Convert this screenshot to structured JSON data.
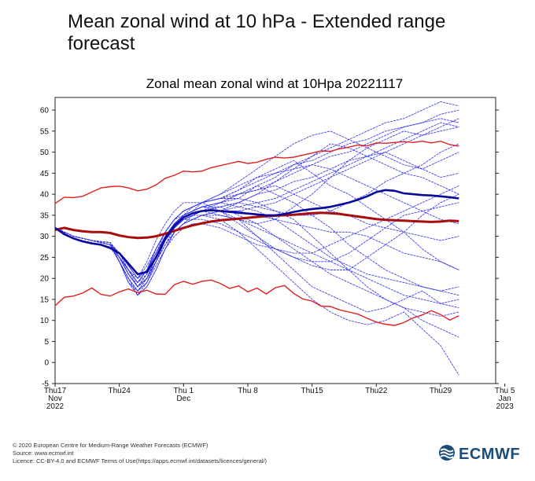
{
  "page": {
    "title": "Mean zonal wind at 10 hPa - Extended range forecast"
  },
  "chart_data": {
    "type": "line",
    "title": "Zonal mean zonal wind at 10Hpa 20221117",
    "xlabel": "",
    "ylabel": "",
    "x_unit": "days since 2022-11-17",
    "xlim": [
      0,
      48
    ],
    "ylim": [
      -5,
      63
    ],
    "yticks": [
      -5,
      0,
      5,
      10,
      15,
      20,
      25,
      30,
      35,
      40,
      45,
      50,
      55,
      60
    ],
    "xticks": [
      {
        "x": 0,
        "lines": [
          "Thu17",
          "Nov",
          "2022"
        ]
      },
      {
        "x": 7,
        "lines": [
          "Thu24"
        ]
      },
      {
        "x": 14,
        "lines": [
          "Thu 1",
          "Dec"
        ]
      },
      {
        "x": 21,
        "lines": [
          "Thu 8"
        ]
      },
      {
        "x": 28,
        "lines": [
          "Thu15"
        ]
      },
      {
        "x": 35,
        "lines": [
          "Thu22"
        ]
      },
      {
        "x": 42,
        "lines": [
          "Thu29"
        ]
      },
      {
        "x": 49,
        "lines": [
          "Thu 5",
          "Jan",
          "2023"
        ]
      }
    ],
    "grid": false,
    "legend": "none",
    "colors": {
      "ensemble": "#2a2aee",
      "ensemble_mean": "#0a0a9a",
      "climatology_mean": "#a80d0d",
      "climatology_bounds": "#e02020"
    },
    "climatology": {
      "x": [
        0,
        1,
        2,
        3,
        4,
        5,
        6,
        7,
        8,
        9,
        10,
        11,
        12,
        13,
        14,
        15,
        16,
        17,
        18,
        19,
        20,
        21,
        22,
        23,
        24,
        25,
        26,
        27,
        28,
        29,
        30,
        31,
        32,
        33,
        34,
        35,
        36,
        37,
        38,
        39,
        40,
        41,
        42,
        43,
        44
      ],
      "mean": [
        31.5,
        32,
        31.5,
        31.2,
        31,
        31,
        30.8,
        30.2,
        29.8,
        29.6,
        29.7,
        30,
        30.6,
        31.3,
        32,
        32.6,
        33.1,
        33.5,
        33.8,
        34,
        34.2,
        34.4,
        34.6,
        34.8,
        34.9,
        35,
        35.1,
        35.3,
        35.5,
        35.6,
        35.5,
        35.3,
        35,
        34.7,
        34.4,
        34.1,
        33.9,
        33.8,
        33.7,
        33.6,
        33.5,
        33.4,
        33.5,
        33.7,
        33.6
      ],
      "upper": [
        37.8,
        39.3,
        39.2,
        39.5,
        40.5,
        41.5,
        41.8,
        41.9,
        41.5,
        40.8,
        41.2,
        42.2,
        43.8,
        44.5,
        45.5,
        45.3,
        45.5,
        46.3,
        46.8,
        47.3,
        47.8,
        47.3,
        47.6,
        48.3,
        48.8,
        48.6,
        48.8,
        49.3,
        49.8,
        50.3,
        50.2,
        50.8,
        51.2,
        51.7,
        51.5,
        52.2,
        52.1,
        52.3,
        52.5,
        52.3,
        52.6,
        52.2,
        52.6,
        51.8,
        51.4
      ],
      "lower": [
        13.5,
        15.5,
        15.8,
        16.5,
        17.7,
        16.2,
        15.8,
        16.8,
        17.5,
        16.6,
        17.2,
        16.3,
        16.2,
        18.5,
        19.3,
        18.6,
        19.3,
        19.6,
        18.8,
        17.6,
        18.2,
        16.8,
        17.7,
        16.3,
        17.8,
        18.3,
        16.4,
        15.1,
        14.6,
        13.4,
        13.3,
        12.5,
        12,
        11.5,
        10.5,
        9.6,
        9.1,
        8.8,
        9.5,
        10.6,
        11.3,
        12.3,
        11.4,
        10.1,
        11.1
      ]
    },
    "ensemble_mean": {
      "x": [
        0,
        1,
        2,
        3,
        4,
        5,
        6,
        7,
        8,
        9,
        10,
        11,
        12,
        13,
        14,
        15,
        16,
        17,
        18,
        19,
        20,
        21,
        22,
        23,
        24,
        25,
        26,
        27,
        28,
        29,
        30,
        31,
        32,
        33,
        34,
        35,
        36,
        37,
        38,
        39,
        40,
        41,
        42,
        43,
        44
      ],
      "values": [
        32,
        30.5,
        29.5,
        28.8,
        28.3,
        28,
        27.2,
        26,
        23.5,
        21,
        21.5,
        25,
        29.5,
        32.5,
        34.5,
        35.5,
        36,
        36.2,
        36,
        35.8,
        35.6,
        35.4,
        35.2,
        35,
        35,
        35.3,
        35.8,
        36.2,
        36.5,
        36.7,
        37,
        37.5,
        38,
        38.7,
        39.5,
        40.5,
        41,
        40.8,
        40.2,
        40,
        39.8,
        39.7,
        39.5,
        39.3,
        39
      ]
    },
    "members_x": [
      0,
      2,
      4,
      6,
      7,
      8,
      9,
      10,
      11,
      12,
      13,
      14,
      15,
      16,
      18,
      20,
      22,
      24,
      26,
      28,
      30,
      32,
      34,
      36,
      38,
      40,
      42,
      44
    ],
    "members": [
      [
        32,
        30,
        29,
        28.5,
        25,
        21,
        18,
        20,
        25,
        30,
        33,
        35,
        36,
        37,
        38,
        39,
        42,
        44,
        47,
        49,
        51,
        53,
        55,
        57,
        58,
        60,
        62,
        61
      ],
      [
        32,
        30,
        29,
        28,
        26,
        22,
        19,
        22,
        27,
        31,
        34,
        36,
        37,
        38,
        39,
        41,
        43,
        45,
        46,
        47,
        49,
        50,
        52,
        54,
        56,
        57,
        58,
        57
      ],
      [
        32,
        30,
        29,
        28.5,
        24,
        19,
        17,
        19,
        24,
        28,
        32,
        34,
        35,
        36,
        35,
        34,
        33,
        34,
        37,
        40,
        44,
        48,
        51,
        53,
        55,
        54,
        56,
        58
      ],
      [
        32,
        29.5,
        28.5,
        27.5,
        24,
        20,
        16,
        18,
        22,
        27,
        31,
        33,
        35,
        36,
        37,
        38,
        37,
        36,
        35,
        35,
        36,
        38,
        40,
        43,
        45,
        47,
        50,
        52
      ],
      [
        32,
        30,
        29,
        28,
        25,
        22,
        20,
        24,
        29,
        33,
        36,
        38,
        38,
        38,
        36,
        33,
        30,
        27,
        25,
        23,
        22,
        22,
        25,
        28,
        31,
        35,
        38,
        40
      ],
      [
        32,
        30,
        29,
        28,
        25,
        21,
        18,
        21,
        25,
        29,
        33,
        35,
        36,
        37,
        38,
        40,
        42,
        40,
        38,
        35,
        32,
        28,
        25,
        22,
        20,
        18,
        17,
        16
      ],
      [
        32,
        30,
        29,
        28,
        24,
        20,
        17,
        20,
        25,
        30,
        33,
        35,
        36,
        37,
        36,
        34,
        30,
        26,
        22,
        18,
        16,
        14,
        12,
        13,
        15,
        17,
        14,
        15
      ],
      [
        32,
        30,
        29,
        28.5,
        26,
        23,
        20,
        22,
        26,
        30,
        33,
        35,
        37,
        38,
        39,
        39,
        38,
        36,
        34,
        30,
        26,
        22,
        18,
        15,
        13,
        10,
        8,
        6
      ],
      [
        32,
        30,
        29,
        28,
        25,
        21,
        18,
        20,
        24,
        29,
        32,
        34,
        35,
        35,
        34,
        31,
        27,
        23,
        19,
        15,
        12,
        10,
        9,
        10,
        12,
        8,
        4,
        -3
      ],
      [
        32,
        30,
        29,
        28,
        26,
        22,
        19,
        22,
        26,
        31,
        34,
        36,
        37,
        38,
        39,
        41,
        44,
        46,
        48,
        45,
        42,
        40,
        37,
        34,
        31,
        27,
        24,
        22
      ],
      [
        32,
        30,
        29,
        28,
        24,
        19,
        16,
        19,
        24,
        29,
        32,
        34,
        35,
        36,
        36,
        36,
        35,
        34,
        33,
        32,
        31,
        31,
        30,
        28,
        26,
        25,
        24,
        22
      ],
      [
        32,
        30,
        29,
        28.5,
        25,
        22,
        19,
        22,
        27,
        31,
        34,
        36,
        37,
        38,
        40,
        42,
        44,
        45,
        47,
        48,
        50,
        52,
        53,
        55,
        56,
        57,
        59,
        60
      ],
      [
        32,
        30,
        29,
        28,
        25,
        21,
        18,
        21,
        25,
        29,
        32,
        34,
        35,
        36,
        37,
        38,
        40,
        43,
        46,
        49,
        52,
        51,
        49,
        47,
        45,
        44,
        42,
        40
      ],
      [
        32,
        30,
        29,
        28,
        24,
        20,
        17,
        20,
        25,
        29,
        32,
        34,
        35,
        36,
        36,
        36,
        37,
        38,
        40,
        42,
        44,
        46,
        48,
        50,
        52,
        54,
        55,
        56
      ],
      [
        32,
        30,
        29,
        28,
        26,
        23,
        20,
        22,
        26,
        30,
        33,
        34,
        34,
        34,
        33,
        31,
        29,
        27,
        25,
        24,
        24,
        26,
        29,
        32,
        35,
        36,
        37,
        38
      ],
      [
        32,
        30,
        29,
        28,
        25,
        22,
        18,
        20,
        24,
        28,
        31,
        33,
        34,
        35,
        36,
        38,
        40,
        41,
        43,
        44,
        46,
        48,
        49,
        50,
        48,
        46,
        44,
        45
      ],
      [
        32,
        30,
        29,
        28,
        24,
        20,
        17,
        19,
        23,
        27,
        30,
        32,
        33,
        33,
        32,
        30,
        28,
        27,
        26,
        26,
        28,
        30,
        32,
        34,
        36,
        38,
        40,
        42
      ],
      [
        32,
        30,
        29,
        28,
        26,
        22,
        19,
        21,
        25,
        30,
        33,
        35,
        36,
        37,
        38,
        37,
        36,
        34,
        31,
        28,
        25,
        23,
        21,
        20,
        19,
        18,
        17,
        18
      ],
      [
        32,
        30,
        29,
        28,
        25,
        21,
        18,
        21,
        25,
        30,
        33,
        35,
        36,
        38,
        40,
        43,
        46,
        49,
        52,
        54,
        55,
        53,
        51,
        49,
        47,
        46,
        48,
        50
      ],
      [
        32,
        30,
        29,
        28,
        25,
        22,
        19,
        22,
        27,
        31,
        34,
        35,
        36,
        37,
        37,
        35,
        33,
        30,
        27,
        24,
        21,
        19,
        17,
        15,
        13,
        12,
        11,
        12
      ],
      [
        32,
        30,
        29,
        28,
        24,
        19,
        16,
        18,
        22,
        27,
        31,
        33,
        34,
        35,
        36,
        37,
        38,
        39,
        41,
        43,
        45,
        47,
        49,
        51,
        53,
        55,
        57,
        56
      ],
      [
        32,
        30,
        29,
        28,
        25,
        21,
        18,
        20,
        24,
        29,
        32,
        34,
        35,
        36,
        38,
        40,
        41,
        42,
        40,
        38,
        36,
        35,
        33,
        32,
        31,
        30,
        29,
        30
      ],
      [
        32,
        30,
        29,
        28.5,
        26,
        23,
        20,
        23,
        27,
        31,
        34,
        36,
        37,
        38,
        39,
        40,
        41,
        43,
        45,
        47,
        46,
        44,
        42,
        40,
        38,
        36,
        34,
        33
      ],
      [
        32,
        30,
        29,
        28,
        25,
        21,
        18,
        20,
        24,
        28,
        31,
        33,
        34,
        35,
        35,
        34,
        32,
        30,
        28,
        26,
        24,
        22,
        20,
        18,
        16,
        15,
        14,
        13
      ]
    ]
  },
  "footer": {
    "lines": [
      "© 2020 European Centre for Medium-Range Weather Forecasts (ECMWF)",
      "Source: www.ecmwf.int",
      "Licence: CC-BY-4.0 and ECMWF Terms of Use(https://apps.ecmwf.int/datasets/licences/general/)"
    ]
  },
  "logo": {
    "text": "ECMWF",
    "icon": "ecmwf-wave-icon",
    "color": "#1a4d7a"
  }
}
